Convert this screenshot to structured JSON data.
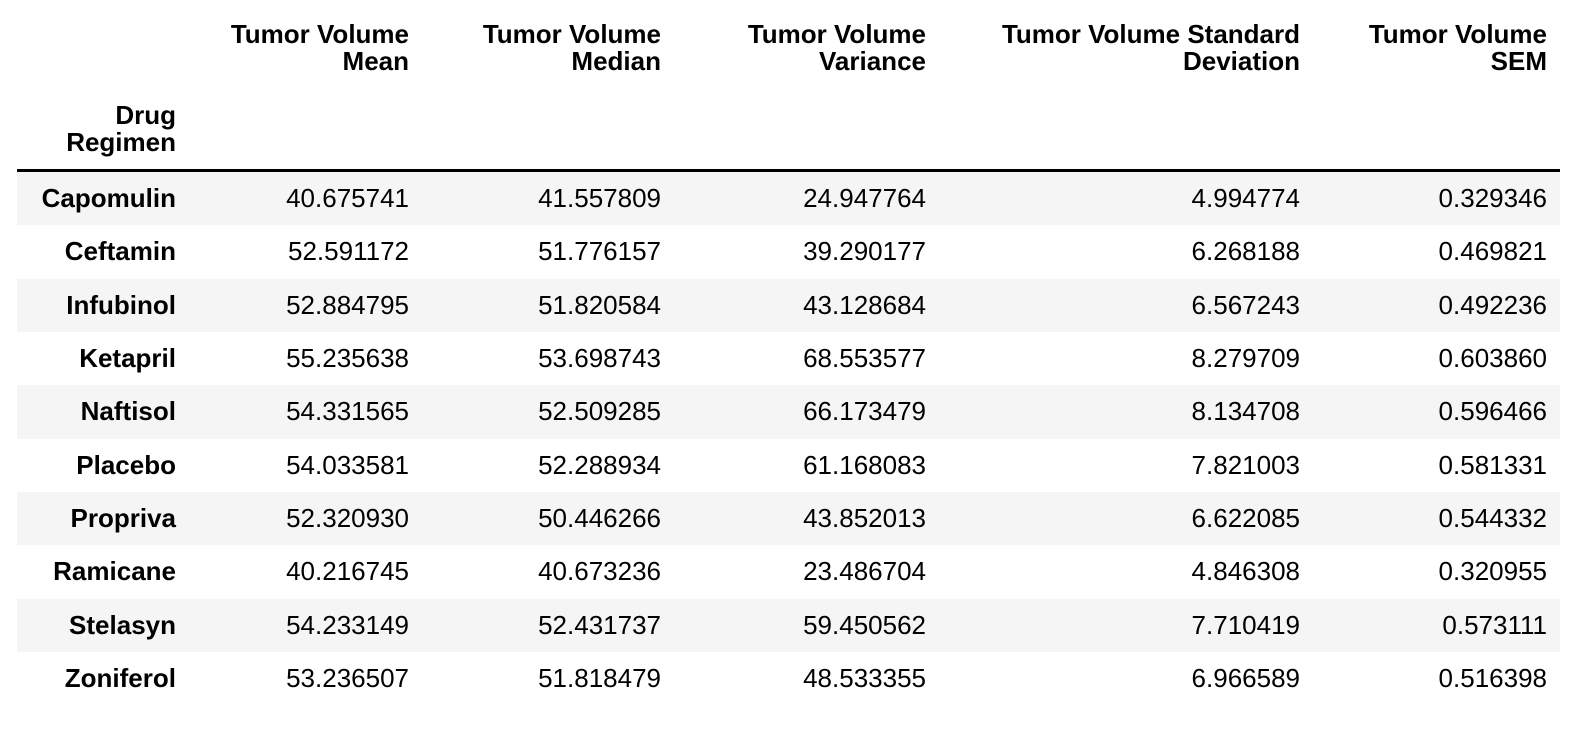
{
  "chart_data": {
    "type": "table",
    "index_label": "Drug Regimen",
    "columns": [
      "Tumor Volume Mean",
      "Tumor Volume Median",
      "Tumor Volume Variance",
      "Tumor Volume Standard Deviation",
      "Tumor Volume SEM"
    ],
    "rows": [
      {
        "regimen": "Capomulin",
        "values": [
          "40.675741",
          "41.557809",
          "24.947764",
          "4.994774",
          "0.329346"
        ]
      },
      {
        "regimen": "Ceftamin",
        "values": [
          "52.591172",
          "51.776157",
          "39.290177",
          "6.268188",
          "0.469821"
        ]
      },
      {
        "regimen": "Infubinol",
        "values": [
          "52.884795",
          "51.820584",
          "43.128684",
          "6.567243",
          "0.492236"
        ]
      },
      {
        "regimen": "Ketapril",
        "values": [
          "55.235638",
          "53.698743",
          "68.553577",
          "8.279709",
          "0.603860"
        ]
      },
      {
        "regimen": "Naftisol",
        "values": [
          "54.331565",
          "52.509285",
          "66.173479",
          "8.134708",
          "0.596466"
        ]
      },
      {
        "regimen": "Placebo",
        "values": [
          "54.033581",
          "52.288934",
          "61.168083",
          "7.821003",
          "0.581331"
        ]
      },
      {
        "regimen": "Propriva",
        "values": [
          "52.320930",
          "50.446266",
          "43.852013",
          "6.622085",
          "0.544332"
        ]
      },
      {
        "regimen": "Ramicane",
        "values": [
          "40.216745",
          "40.673236",
          "23.486704",
          "4.846308",
          "0.320955"
        ]
      },
      {
        "regimen": "Stelasyn",
        "values": [
          "54.233149",
          "52.431737",
          "59.450562",
          "7.710419",
          "0.573111"
        ]
      },
      {
        "regimen": "Zoniferol",
        "values": [
          "53.236507",
          "51.818479",
          "48.533355",
          "6.966589",
          "0.516398"
        ]
      }
    ]
  },
  "style": {
    "stripe_color": "#f5f5f5",
    "header_border_color": "#000000",
    "text_color": "#000000",
    "background_color": "#ffffff"
  }
}
